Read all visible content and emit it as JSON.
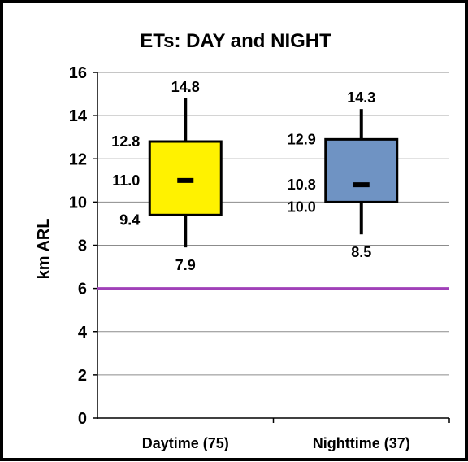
{
  "chart_data": {
    "type": "box",
    "title": "ETs:  DAY and NIGHT",
    "ylabel": "km ARL",
    "xlabel": "",
    "ylim": [
      0,
      16
    ],
    "yticks": [
      0,
      2,
      4,
      6,
      8,
      10,
      12,
      14,
      16
    ],
    "grid": true,
    "categories": [
      "Daytime (75)",
      "Nighttime (37)"
    ],
    "boxes": [
      {
        "min": 7.9,
        "q1": 9.4,
        "median": 11.0,
        "q3": 12.8,
        "max": 14.8,
        "labels": {
          "min": "7.9",
          "q1": "9.4",
          "median": "11.0",
          "q3": "12.8",
          "max": "14.8"
        },
        "color": "#FFF200"
      },
      {
        "min": 8.5,
        "q1": 10.0,
        "median": 10.8,
        "q3": 12.9,
        "max": 14.3,
        "labels": {
          "min": "8.5",
          "q1": "10.0",
          "median": "10.8",
          "q3": "12.9",
          "max": "14.3"
        },
        "color": "#6F93C3"
      }
    ],
    "reference_line": {
      "y": 6,
      "color": "#A040B8"
    }
  }
}
